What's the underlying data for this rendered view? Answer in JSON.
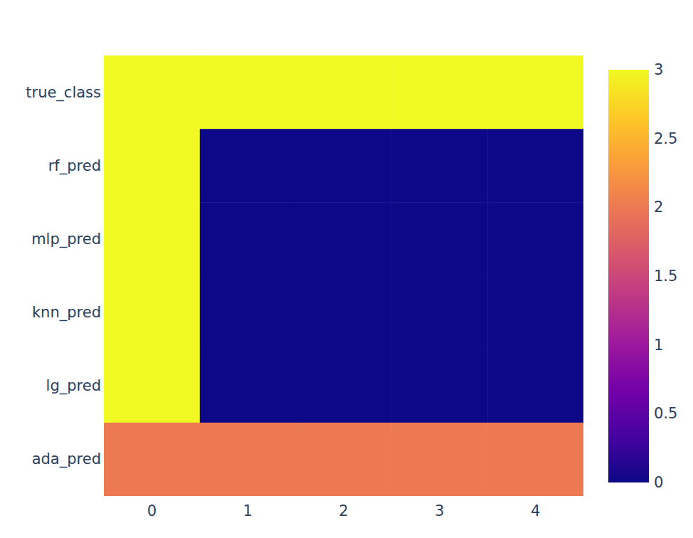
{
  "chart_data": {
    "type": "heatmap",
    "x": [
      0,
      1,
      2,
      3,
      4
    ],
    "xlim": [
      -0.5,
      4.5
    ],
    "xticks": [
      0,
      1,
      2,
      3,
      4
    ],
    "y_categories": [
      "true_class",
      "rf_pred",
      "mlp_pred",
      "knn_pred",
      "lg_pred",
      "ada_pred"
    ],
    "z": [
      [
        3,
        3,
        3,
        3,
        3
      ],
      [
        3,
        0,
        0,
        0,
        0
      ],
      [
        3,
        0,
        0,
        0,
        0
      ],
      [
        3,
        0,
        0,
        0,
        0
      ],
      [
        3,
        0,
        0,
        0,
        0
      ],
      [
        2,
        2,
        2,
        2,
        2
      ]
    ],
    "colorbar": {
      "range": [
        0,
        3
      ],
      "ticks": [
        0,
        0.5,
        1,
        1.5,
        2,
        2.5,
        3
      ]
    }
  }
}
